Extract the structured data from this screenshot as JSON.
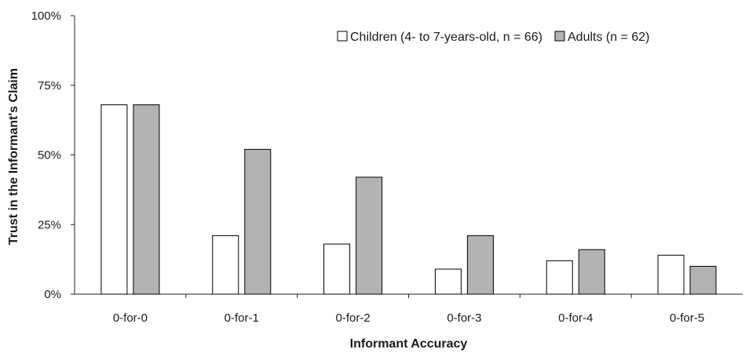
{
  "chart_data": {
    "type": "bar",
    "xlabel": "Informant Accuracy",
    "ylabel": "Trust in the Informant's Claim",
    "ylim": [
      0,
      100
    ],
    "yticks": [
      0,
      25,
      50,
      75,
      100
    ],
    "ytick_labels": [
      "0%",
      "25%",
      "50%",
      "75%",
      "100%"
    ],
    "categories": [
      "0-for-0",
      "0-for-1",
      "0-for-2",
      "0-for-3",
      "0-for-4",
      "0-for-5"
    ],
    "series": [
      {
        "name": "Children (4- to 7-years-old, n = 66)",
        "values": [
          68,
          21,
          18,
          9,
          12,
          14
        ],
        "color": "#ffffff"
      },
      {
        "name": "Adults (n = 62)",
        "values": [
          68,
          52,
          42,
          21,
          16,
          10
        ],
        "color": "#b3b3b3"
      }
    ],
    "legend_position": "top-right",
    "grid": false
  }
}
